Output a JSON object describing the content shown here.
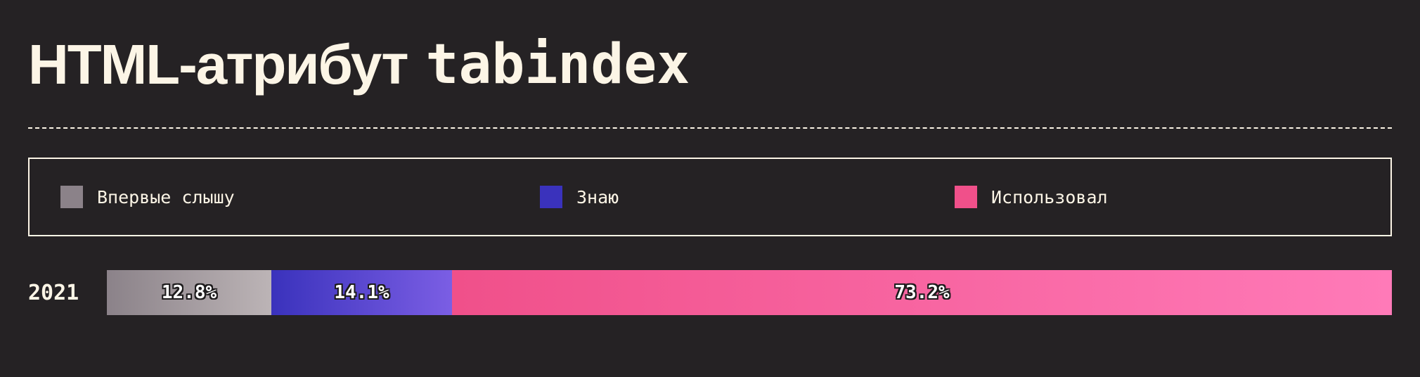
{
  "header": {
    "title_main": "HTML-атрибут",
    "title_code": "tabindex"
  },
  "chart_data": {
    "type": "bar",
    "orientation": "horizontal",
    "stacked": true,
    "normalized_to": 100,
    "title": "HTML-атрибут tabindex",
    "categories": [
      "2021"
    ],
    "legend_position": "top",
    "series": [
      {
        "name": "Впервые слышу",
        "values": [
          12.8
        ],
        "label": "12.8%",
        "color": "#8b8289",
        "gradient": [
          "#8b8289",
          "#bcb4b6"
        ]
      },
      {
        "name": "Знаю",
        "values": [
          14.1
        ],
        "label": "14.1%",
        "color": "#3a32bc",
        "gradient": [
          "#3a32bc",
          "#7b5ee4"
        ]
      },
      {
        "name": "Использовал",
        "values": [
          73.2
        ],
        "label": "73.2%",
        "color": "#f0508a",
        "gradient": [
          "#f0508a",
          "#ff7ab8"
        ]
      }
    ]
  }
}
